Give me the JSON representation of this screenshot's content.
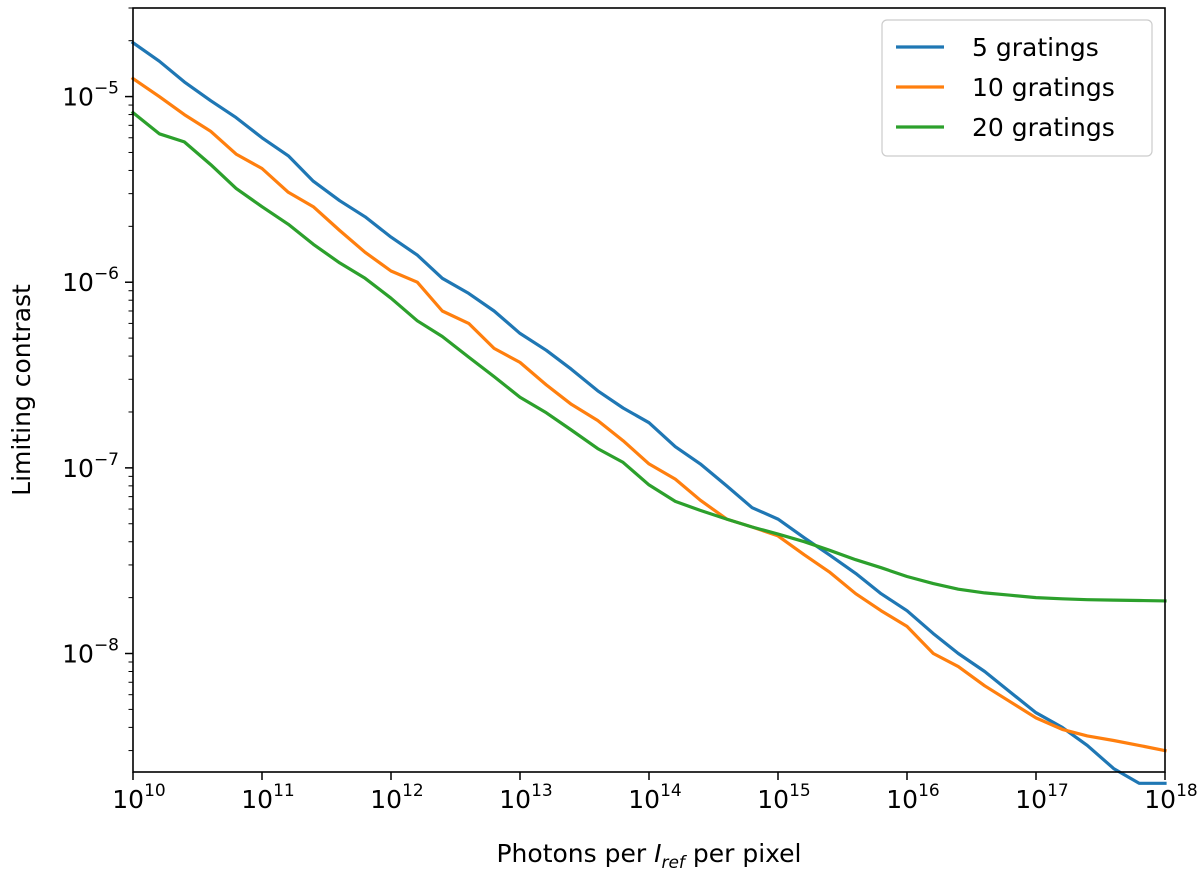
{
  "chart_data": {
    "type": "line",
    "xlabel_parts": [
      "Photons per ",
      "I",
      "ref",
      " per pixel"
    ],
    "ylabel": "Limiting contrast",
    "x_scale": "log",
    "y_scale": "log",
    "xlim": [
      10000000000.0,
      1e+18
    ],
    "ylim": [
      2.3e-09,
      3e-05
    ],
    "grid": false,
    "legend_position": "top-right",
    "x_ticks": [
      {
        "value": 10000000000.0,
        "base": "10",
        "exp": "10"
      },
      {
        "value": 100000000000.0,
        "base": "10",
        "exp": "11"
      },
      {
        "value": 1000000000000.0,
        "base": "10",
        "exp": "12"
      },
      {
        "value": 10000000000000.0,
        "base": "10",
        "exp": "13"
      },
      {
        "value": 100000000000000.0,
        "base": "10",
        "exp": "14"
      },
      {
        "value": 1000000000000000.0,
        "base": "10",
        "exp": "15"
      },
      {
        "value": 1e+16,
        "base": "10",
        "exp": "16"
      },
      {
        "value": 1e+17,
        "base": "10",
        "exp": "17"
      },
      {
        "value": 1e+18,
        "base": "10",
        "exp": "18"
      }
    ],
    "y_ticks": [
      {
        "value": 1e-05,
        "base": "10",
        "exp": "−5"
      },
      {
        "value": 1e-06,
        "base": "10",
        "exp": "−6"
      },
      {
        "value": 1e-07,
        "base": "10",
        "exp": "−7"
      },
      {
        "value": 1e-08,
        "base": "10",
        "exp": "−8"
      }
    ],
    "series": [
      {
        "name": "5 gratings",
        "color": "#1f77b4",
        "x": [
          10000000000.0,
          16000000000.0,
          25000000000.0,
          40000000000.0,
          63000000000.0,
          100000000000.0,
          160000000000.0,
          250000000000.0,
          400000000000.0,
          630000000000.0,
          1000000000000.0,
          1600000000000.0,
          2500000000000.0,
          4000000000000.0,
          6300000000000.0,
          10000000000000.0,
          16000000000000.0,
          25000000000000.0,
          40000000000000.0,
          63000000000000.0,
          100000000000000.0,
          160000000000000.0,
          250000000000000.0,
          400000000000000.0,
          630000000000000.0,
          1000000000000000.0,
          1600000000000000.0,
          2500000000000000.0,
          4000000000000000.0,
          6300000000000000.0,
          1e+16,
          1.6e+16,
          2.5e+16,
          4e+16,
          6.3e+16,
          1e+17,
          1.6e+17,
          2.5e+17,
          4e+17,
          6.3e+17,
          1e+18
        ],
        "y": [
          1.95e-05,
          1.55e-05,
          1.2e-05,
          9.5e-06,
          7.7e-06,
          6e-06,
          4.8e-06,
          3.5e-06,
          2.75e-06,
          2.25e-06,
          1.75e-06,
          1.4e-06,
          1.05e-06,
          8.7e-07,
          7e-07,
          5.3e-07,
          4.3e-07,
          3.4e-07,
          2.6e-07,
          2.1e-07,
          1.75e-07,
          1.3e-07,
          1.05e-07,
          8e-08,
          6.1e-08,
          5.3e-08,
          4.2e-08,
          3.4e-08,
          2.7e-08,
          2.1e-08,
          1.7e-08,
          1.28e-08,
          1e-08,
          8e-09,
          6.2e-09,
          4.8e-09,
          4e-09,
          3.2e-09,
          2.4e-09,
          2e-09,
          2e-09
        ]
      },
      {
        "name": "10 gratings",
        "color": "#ff7f0e",
        "x": [
          10000000000.0,
          16000000000.0,
          25000000000.0,
          40000000000.0,
          63000000000.0,
          100000000000.0,
          160000000000.0,
          250000000000.0,
          400000000000.0,
          630000000000.0,
          1000000000000.0,
          1600000000000.0,
          2500000000000.0,
          4000000000000.0,
          6300000000000.0,
          10000000000000.0,
          16000000000000.0,
          25000000000000.0,
          40000000000000.0,
          63000000000000.0,
          100000000000000.0,
          160000000000000.0,
          250000000000000.0,
          400000000000000.0,
          630000000000000.0,
          1000000000000000.0,
          1600000000000000.0,
          2500000000000000.0,
          4000000000000000.0,
          6300000000000000.0,
          1e+16,
          1.6e+16,
          2.5e+16,
          4e+16,
          6.3e+16,
          1e+17,
          1.6e+17,
          2.5e+17,
          4e+17,
          6.3e+17,
          1e+18
        ],
        "y": [
          1.25e-05,
          1e-05,
          8e-06,
          6.5e-06,
          4.9e-06,
          4.1e-06,
          3.05e-06,
          2.55e-06,
          1.9e-06,
          1.45e-06,
          1.15e-06,
          1e-06,
          7e-07,
          6e-07,
          4.4e-07,
          3.7e-07,
          2.8e-07,
          2.2e-07,
          1.8e-07,
          1.4e-07,
          1.05e-07,
          8.7e-08,
          6.7e-08,
          5.3e-08,
          4.8e-08,
          4.3e-08,
          3.4e-08,
          2.75e-08,
          2.1e-08,
          1.7e-08,
          1.4e-08,
          1e-08,
          8.5e-09,
          6.7e-09,
          5.5e-09,
          4.5e-09,
          3.9e-09,
          3.6e-09,
          3.4e-09,
          3.2e-09,
          3e-09
        ]
      },
      {
        "name": "20 gratings",
        "color": "#2ca02c",
        "x": [
          10000000000.0,
          16000000000.0,
          25000000000.0,
          40000000000.0,
          63000000000.0,
          100000000000.0,
          160000000000.0,
          250000000000.0,
          400000000000.0,
          630000000000.0,
          1000000000000.0,
          1600000000000.0,
          2500000000000.0,
          4000000000000.0,
          6300000000000.0,
          10000000000000.0,
          16000000000000.0,
          25000000000000.0,
          40000000000000.0,
          63000000000000.0,
          100000000000000.0,
          160000000000000.0,
          250000000000000.0,
          400000000000000.0,
          630000000000000.0,
          1000000000000000.0,
          1600000000000000.0,
          2500000000000000.0,
          4000000000000000.0,
          6300000000000000.0,
          1e+16,
          1.6e+16,
          2.5e+16,
          4e+16,
          6.3e+16,
          1e+17,
          1.6e+17,
          2.5e+17,
          4e+17,
          6.3e+17,
          1e+18
        ],
        "y": [
          8.2e-06,
          6.3e-06,
          5.7e-06,
          4.3e-06,
          3.2e-06,
          2.55e-06,
          2.05e-06,
          1.6e-06,
          1.27e-06,
          1.05e-06,
          8.2e-07,
          6.2e-07,
          5.1e-07,
          3.95e-07,
          3.1e-07,
          2.4e-07,
          1.98e-07,
          1.6e-07,
          1.27e-07,
          1.07e-07,
          8.1e-08,
          6.6e-08,
          5.9e-08,
          5.3e-08,
          4.8e-08,
          4.4e-08,
          4e-08,
          3.6e-08,
          3.2e-08,
          2.9e-08,
          2.6e-08,
          2.38e-08,
          2.22e-08,
          2.12e-08,
          2.06e-08,
          2e-08,
          1.97e-08,
          1.95e-08,
          1.94e-08,
          1.93e-08,
          1.92e-08
        ]
      }
    ]
  }
}
